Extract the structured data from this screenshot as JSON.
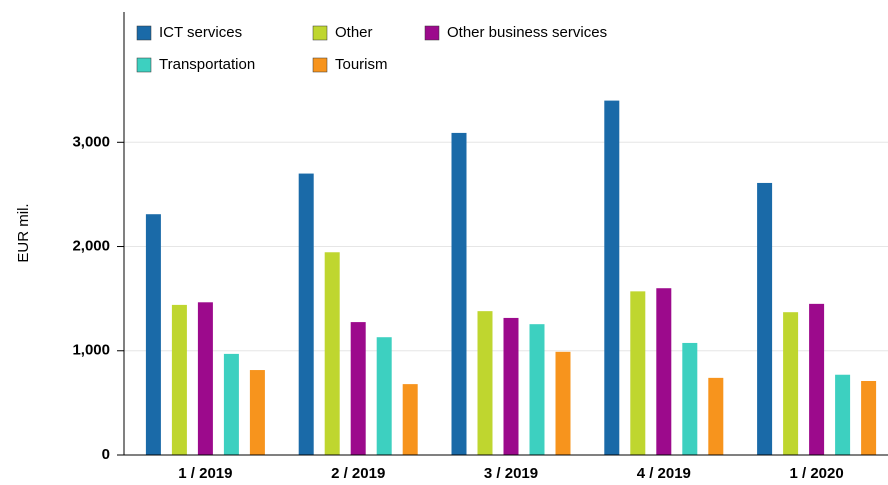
{
  "chart_data": {
    "type": "bar",
    "y_label": "EUR mil.",
    "categories": [
      "1 / 2019",
      "2 / 2019",
      "3 / 2019",
      "4 / 2019",
      "1 / 2020"
    ],
    "series": [
      {
        "name": "ICT services",
        "color": "#1a6aa8",
        "values": [
          2310,
          2700,
          3090,
          3400,
          2610
        ]
      },
      {
        "name": "Other",
        "color": "#bfd62f",
        "values": [
          1440,
          1945,
          1380,
          1570,
          1370
        ]
      },
      {
        "name": "Other business services",
        "color": "#9c0a8c",
        "values": [
          1465,
          1275,
          1315,
          1600,
          1450
        ]
      },
      {
        "name": "Transportation",
        "color": "#3dd0c0",
        "values": [
          970,
          1130,
          1255,
          1075,
          770
        ]
      },
      {
        "name": "Tourism",
        "color": "#f7941d",
        "values": [
          815,
          680,
          990,
          740,
          710
        ]
      }
    ],
    "ylim": [
      0,
      4250
    ],
    "yticks": [
      0,
      {
        "value": 1000,
        "label": "1,000"
      },
      {
        "value": 2000,
        "label": "2,000"
      },
      {
        "value": 3000,
        "label": "3,000"
      }
    ],
    "grid": true,
    "legend": "top-left"
  }
}
